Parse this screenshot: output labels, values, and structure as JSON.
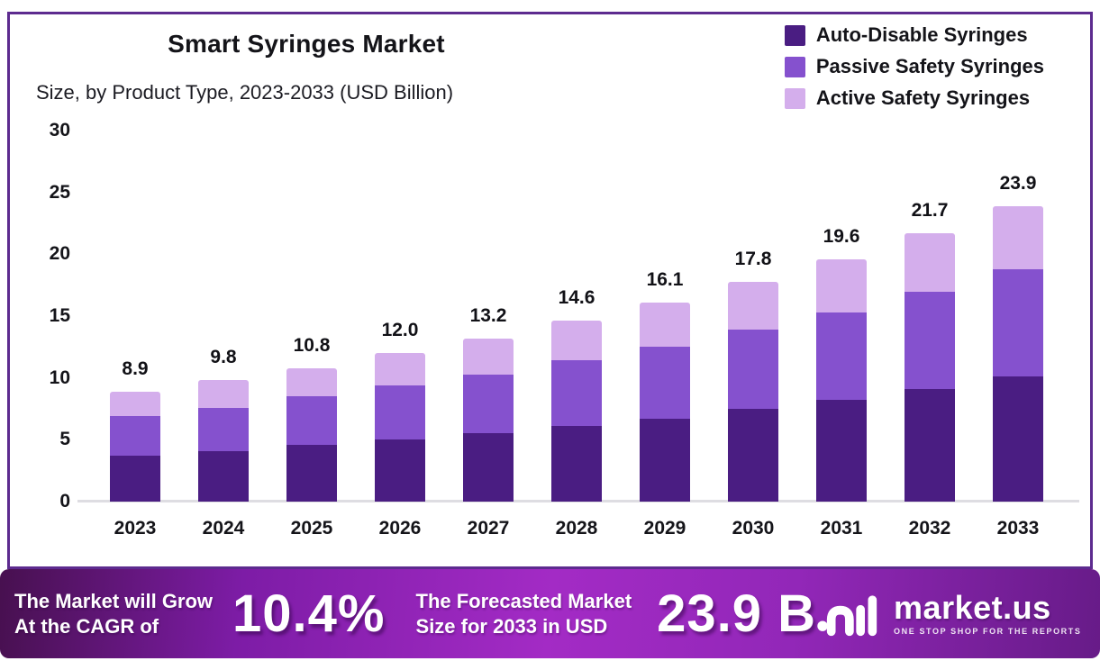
{
  "header": {
    "title": "Smart Syringes Market",
    "subtitle": "Size, by Product Type, 2023-2033 (USD Billion)"
  },
  "chart_data": {
    "type": "bar",
    "stacked": true,
    "title": "Smart Syringes Market",
    "subtitle": "Size, by Product Type, 2023-2033 (USD Billion)",
    "unit": "USD Billion",
    "categories": [
      "2023",
      "2024",
      "2025",
      "2026",
      "2027",
      "2028",
      "2029",
      "2030",
      "2031",
      "2032",
      "2033"
    ],
    "series": [
      {
        "name": "Auto-Disable Syringes",
        "color": "#4a1d82",
        "values": [
          3.7,
          4.1,
          4.6,
          5.0,
          5.5,
          6.1,
          6.7,
          7.5,
          8.2,
          9.1,
          10.1
        ]
      },
      {
        "name": "Passive Safety Syringes",
        "color": "#8551ce",
        "values": [
          3.2,
          3.5,
          3.9,
          4.4,
          4.8,
          5.3,
          5.8,
          6.4,
          7.1,
          7.9,
          8.7
        ]
      },
      {
        "name": "Active Safety Syringes",
        "color": "#d4aeec",
        "values": [
          2.0,
          2.2,
          2.3,
          2.6,
          2.9,
          3.2,
          3.6,
          3.9,
          4.3,
          4.7,
          5.1
        ]
      }
    ],
    "totals": [
      "8.9",
      "9.8",
      "10.8",
      "12.0",
      "13.2",
      "14.6",
      "16.1",
      "17.8",
      "19.6",
      "21.7",
      "23.9"
    ],
    "yticks": [
      0,
      5,
      10,
      15,
      20,
      25,
      30
    ],
    "ylim": [
      0,
      30
    ],
    "legend_position": "top-right",
    "grid": false
  },
  "banner": {
    "cagr_label_line1": "The Market will Grow",
    "cagr_label_line2": "At the CAGR of",
    "cagr_value": "10.4%",
    "forecast_label_line1": "The Forecasted Market",
    "forecast_label_line2": "Size for 2033 in USD",
    "forecast_value": "23.9 B",
    "logo_name": "market.us",
    "logo_tagline": "ONE STOP SHOP FOR THE REPORTS"
  },
  "colors": {
    "frame_border": "#5d2b8f",
    "text": "#141419",
    "axis_line": "#dedde2",
    "banner_gradient_start": "#47104f",
    "banner_gradient_mid": "#a32bc5",
    "banner_gradient_end": "#671b88"
  }
}
